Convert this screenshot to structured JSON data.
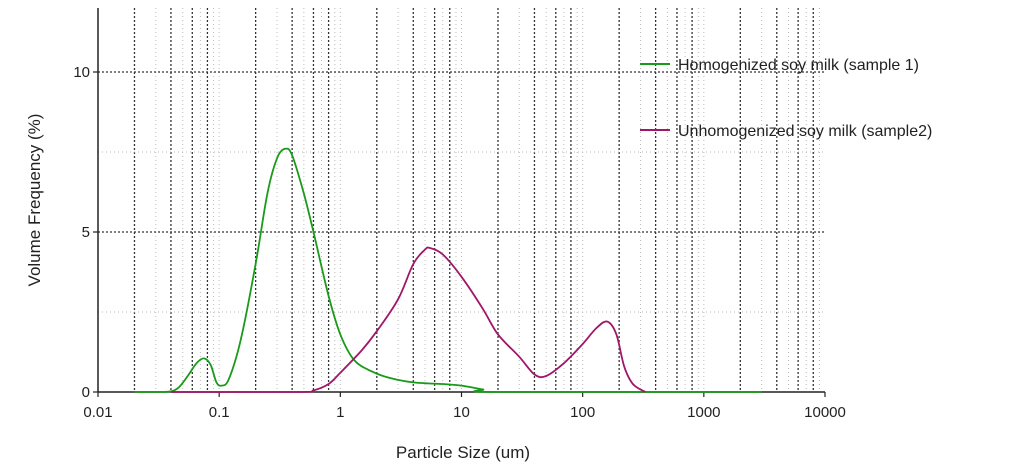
{
  "chart_data": {
    "type": "line",
    "title": "",
    "xlabel": "Particle Size (um)",
    "ylabel": "Volume Frequency (%)",
    "x_scale": "log",
    "xlim": [
      0.01,
      10000
    ],
    "ylim": [
      0,
      12
    ],
    "x_tick_labels": [
      "0.01",
      "0.1",
      "1",
      "10",
      "100",
      "1000",
      "10000"
    ],
    "x_tick_values": [
      0.01,
      0.1,
      1,
      10,
      100,
      1000,
      10000
    ],
    "y_ticks": [
      0,
      5,
      10
    ],
    "grid": true,
    "legend_position": "right",
    "series": [
      {
        "name": "Homogenized soy milk (sample 1)",
        "color": "#1a9a1a",
        "points": [
          [
            0.02,
            0.0
          ],
          [
            0.035,
            0.0
          ],
          [
            0.045,
            0.1
          ],
          [
            0.055,
            0.5
          ],
          [
            0.065,
            0.9
          ],
          [
            0.075,
            1.05
          ],
          [
            0.085,
            0.85
          ],
          [
            0.095,
            0.3
          ],
          [
            0.105,
            0.2
          ],
          [
            0.12,
            0.4
          ],
          [
            0.15,
            1.6
          ],
          [
            0.2,
            4.0
          ],
          [
            0.25,
            6.2
          ],
          [
            0.3,
            7.3
          ],
          [
            0.35,
            7.6
          ],
          [
            0.4,
            7.4
          ],
          [
            0.5,
            6.2
          ],
          [
            0.6,
            5.0
          ],
          [
            0.8,
            3.0
          ],
          [
            1.0,
            1.8
          ],
          [
            1.3,
            1.0
          ],
          [
            1.8,
            0.65
          ],
          [
            2.5,
            0.45
          ],
          [
            4.0,
            0.3
          ],
          [
            7.0,
            0.25
          ],
          [
            10.0,
            0.2
          ],
          [
            15.0,
            0.08
          ],
          [
            20.0,
            0.0
          ],
          [
            3000.0,
            0.0
          ]
        ]
      },
      {
        "name": "Unhomogenized soy milk (sample2)",
        "color": "#a0166a",
        "points": [
          [
            0.04,
            0.0
          ],
          [
            0.45,
            0.0
          ],
          [
            0.6,
            0.05
          ],
          [
            0.8,
            0.25
          ],
          [
            1.0,
            0.6
          ],
          [
            1.5,
            1.3
          ],
          [
            2.0,
            1.9
          ],
          [
            3.0,
            2.9
          ],
          [
            4.0,
            4.0
          ],
          [
            5.0,
            4.45
          ],
          [
            5.5,
            4.5
          ],
          [
            7.0,
            4.3
          ],
          [
            10.0,
            3.6
          ],
          [
            15.0,
            2.6
          ],
          [
            20.0,
            1.8
          ],
          [
            30.0,
            1.1
          ],
          [
            40.0,
            0.55
          ],
          [
            50.0,
            0.5
          ],
          [
            70.0,
            0.9
          ],
          [
            100.0,
            1.5
          ],
          [
            130.0,
            2.0
          ],
          [
            160.0,
            2.2
          ],
          [
            190.0,
            1.8
          ],
          [
            220.0,
            0.8
          ],
          [
            260.0,
            0.25
          ],
          [
            330.0,
            0.0
          ]
        ]
      }
    ]
  }
}
